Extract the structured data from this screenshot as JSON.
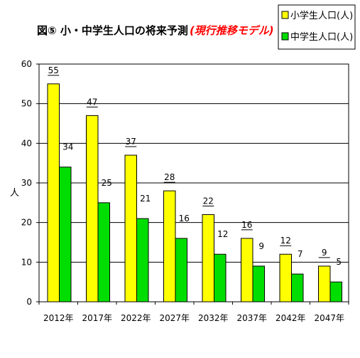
{
  "chart_data": {
    "type": "bar",
    "title": "図⑤ 小・中学生人口の将来予測",
    "subtitle": "(現行推移モデル)",
    "ylabel": "人",
    "xlabel": "",
    "ylim": [
      0,
      60
    ],
    "yticks": [
      0,
      10,
      20,
      30,
      40,
      50,
      60
    ],
    "grid": true,
    "legend_position": "top-right",
    "categories": [
      "2012年",
      "2017年",
      "2022年",
      "2027年",
      "2032年",
      "2037年",
      "2042年",
      "2047年"
    ],
    "series": [
      {
        "name": "小学生人口(人)",
        "color": "#ffff00",
        "values": [
          55,
          47,
          37,
          28,
          22,
          16,
          12,
          9
        ]
      },
      {
        "name": "中学生人口(人)",
        "color": "#00dd00",
        "values": [
          34,
          25,
          21,
          16,
          12,
          9,
          7,
          5
        ]
      }
    ]
  }
}
